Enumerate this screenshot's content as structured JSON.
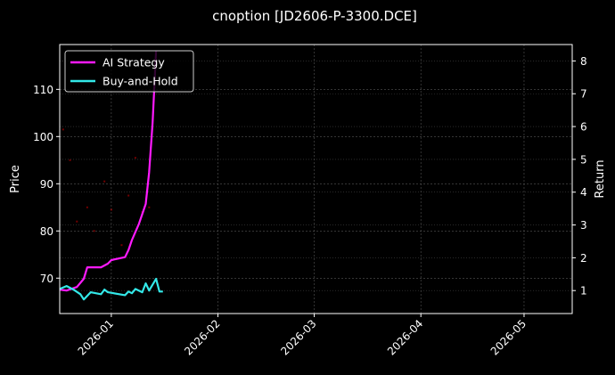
{
  "chart_data": {
    "type": "line",
    "title": "cnoption [JD2606-P-3300.DCE]",
    "xlabel": "",
    "ylabel_left": "Price",
    "ylabel_right": "Return",
    "x_ticks": [
      "2026-01",
      "2026-02",
      "2026-03",
      "2026-04",
      "2026-05"
    ],
    "y_left_ticks": [
      70,
      80,
      90,
      100,
      110
    ],
    "y_right_ticks": [
      1,
      2,
      3,
      4,
      5,
      6,
      7,
      8
    ],
    "y_left_range": [
      62.5,
      119.5
    ],
    "y_right_range": [
      0.3,
      8.5
    ],
    "x_range": [
      "2025-12-17",
      "2026-05-15"
    ],
    "grid": true,
    "legend_position": "upper left",
    "series": [
      {
        "name": "AI Strategy",
        "axis": "right",
        "color": "#ff1aff",
        "x": [
          "2025-12-17",
          "2025-12-19",
          "2025-12-22",
          "2025-12-24",
          "2025-12-25",
          "2025-12-29",
          "2025-12-31",
          "2026-01-01",
          "2026-01-05",
          "2026-01-06",
          "2026-01-07",
          "2026-01-09",
          "2026-01-11",
          "2026-01-12",
          "2026-01-13",
          "2026-01-14"
        ],
        "values": [
          1.03,
          1.0,
          1.11,
          1.36,
          1.71,
          1.71,
          1.82,
          1.93,
          2.02,
          2.24,
          2.54,
          3.03,
          3.64,
          4.6,
          6.11,
          8.3
        ]
      },
      {
        "name": "Buy-and-Hold",
        "axis": "right",
        "color": "#33e8e8",
        "x": [
          "2025-12-17",
          "2025-12-19",
          "2025-12-21",
          "2025-12-23",
          "2025-12-24",
          "2025-12-26",
          "2025-12-29",
          "2025-12-30",
          "2025-12-31",
          "2026-01-05",
          "2026-01-06",
          "2026-01-07",
          "2026-01-08",
          "2026-01-10",
          "2026-01-11",
          "2026-01-12",
          "2026-01-14",
          "2026-01-15",
          "2026-01-16"
        ],
        "values": [
          1.05,
          1.14,
          1.03,
          0.89,
          0.73,
          0.95,
          0.89,
          1.03,
          0.95,
          0.86,
          0.97,
          0.92,
          1.05,
          0.95,
          1.22,
          1.0,
          1.36,
          0.97,
          0.97
        ]
      },
      {
        "name": "Price",
        "axis": "left",
        "type": "scatter",
        "color": "#ff0000",
        "x": [
          "2025-12-18",
          "2025-12-20",
          "2025-12-22",
          "2025-12-25",
          "2025-12-27",
          "2025-12-30",
          "2026-01-01",
          "2026-01-04",
          "2026-01-06",
          "2026-01-08",
          "2026-01-10",
          "2026-01-12"
        ],
        "values": [
          101.5,
          95,
          82,
          85,
          80,
          90.5,
          84.5,
          77,
          87.5,
          95.5,
          84,
          85
        ]
      }
    ]
  },
  "legend": {
    "items": [
      {
        "label": "AI Strategy",
        "color": "#ff1aff"
      },
      {
        "label": "Buy-and-Hold",
        "color": "#33e8e8"
      }
    ]
  }
}
